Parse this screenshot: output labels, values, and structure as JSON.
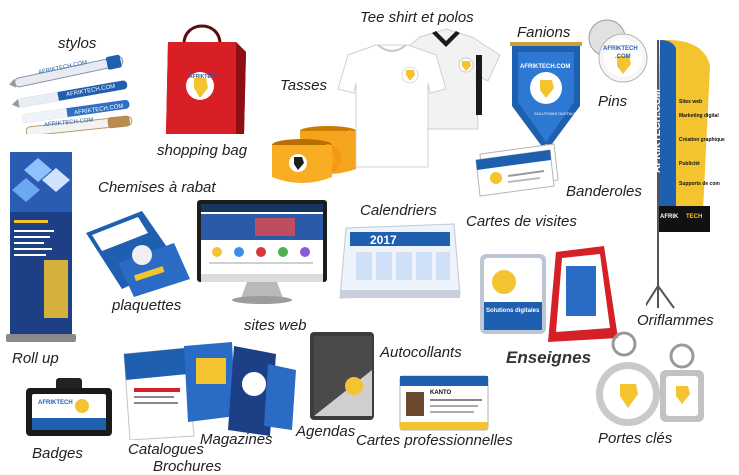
{
  "labels": {
    "stylos": "stylos",
    "tee_shirt": "Tee shirt et polos",
    "fanions": "Fanions",
    "pins": "Pins",
    "tasses": "Tasses",
    "shopping_bag": "shopping bag",
    "chemises": "Chemises à rabat",
    "calendriers": "Calendriers",
    "banderoles": "Banderoles",
    "cartes_visites": "Cartes de visites",
    "plaquettes": "plaquettes",
    "sites_web": "sites web",
    "oriflammes": "Oriflammes",
    "roll_up": "Roll up",
    "autocollants": "Autocollants",
    "enseignes": "Enseignes",
    "badges": "Badges",
    "catalogues": "Catalogues",
    "brochures": "Brochures",
    "magazines": "Magazines",
    "agendas": "Agendas",
    "cartes_pro": "Cartes professionnelles",
    "portes_cles": "Portes clés"
  },
  "brand": {
    "name": "AFRIKTECH",
    "com": ".COM",
    "pen_text": "AFRIKTECH.COM",
    "pennant_bottom": "SOLUTIONS DIGITALES",
    "flag_name": "AFRIKTECH.COM",
    "flag_services": [
      "Sites web",
      "Marketing digital",
      "Création graphique",
      "Publicité",
      "Supports de com"
    ],
    "flag_bottom_1": "AFRIK",
    "flag_bottom_2": "TECH",
    "sign_text": "Solutions digitales",
    "calendar_year": "2017",
    "card_name": "KANTO",
    "colors": {
      "blue": "#1f5fb0",
      "yellow": "#f4c430",
      "red": "#d62027",
      "dark": "#1a1a1a"
    }
  }
}
